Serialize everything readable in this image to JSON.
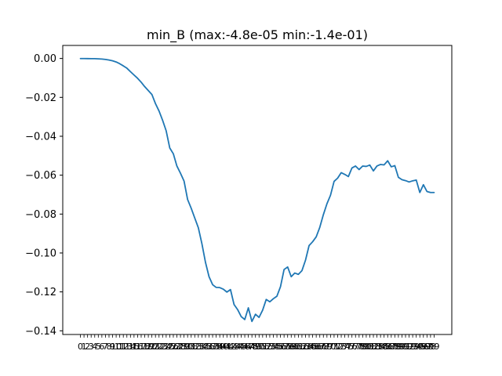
{
  "chart_data": {
    "type": "line",
    "title": "min_B (max:-4.8e-05 min:-1.4e-01)",
    "xlabel": "",
    "ylabel": "",
    "x": [
      0,
      1,
      2,
      3,
      4,
      5,
      6,
      7,
      8,
      9,
      10,
      11,
      12,
      13,
      14,
      15,
      16,
      17,
      18,
      19,
      20,
      21,
      22,
      23,
      24,
      25,
      26,
      27,
      28,
      29,
      30,
      31,
      32,
      33,
      34,
      35,
      36,
      37,
      38,
      39,
      40,
      41,
      42,
      43,
      44,
      45,
      46,
      47,
      48,
      49,
      50,
      51,
      52,
      53,
      54,
      55,
      56,
      57,
      58,
      59,
      60,
      61,
      62,
      63,
      64,
      65,
      66,
      67,
      68,
      69,
      70,
      71,
      72,
      73,
      74,
      75,
      76,
      77,
      78,
      79,
      80,
      81,
      82,
      83,
      84,
      85,
      86,
      87,
      88,
      89,
      90,
      91,
      92,
      93,
      94,
      95,
      96,
      97,
      98,
      99
    ],
    "xticks": [
      "0",
      "1",
      "2",
      "3",
      "4",
      "5",
      "6",
      "7",
      "8",
      "9",
      "10",
      "11",
      "12",
      "13",
      "14",
      "15",
      "16",
      "17",
      "18",
      "19",
      "20",
      "21",
      "22",
      "23",
      "24",
      "25",
      "26",
      "27",
      "28",
      "29",
      "30",
      "31",
      "32",
      "33",
      "34",
      "35",
      "36",
      "37",
      "38",
      "39",
      "40",
      "41",
      "42",
      "43",
      "44",
      "45",
      "46",
      "47",
      "48",
      "49",
      "50",
      "51",
      "52",
      "53",
      "54",
      "55",
      "56",
      "57",
      "58",
      "59",
      "60",
      "61",
      "62",
      "63",
      "64",
      "65",
      "66",
      "67",
      "68",
      "69",
      "70",
      "71",
      "72",
      "73",
      "74",
      "75",
      "76",
      "77",
      "78",
      "79",
      "80",
      "81",
      "82",
      "83",
      "84",
      "85",
      "86",
      "87",
      "88",
      "89",
      "90",
      "91",
      "92",
      "93",
      "94",
      "95",
      "96",
      "97",
      "98",
      "99"
    ],
    "series": [
      {
        "color": "#1f77b4",
        "values": [
          -5e-05,
          -5e-05,
          -6e-05,
          -8e-05,
          -0.0001,
          -0.0002,
          -0.0003,
          -0.0005,
          -0.0008,
          -0.0012,
          -0.0018,
          -0.0027,
          -0.0038,
          -0.005,
          -0.0068,
          -0.0085,
          -0.0102,
          -0.0122,
          -0.0145,
          -0.0165,
          -0.0185,
          -0.0232,
          -0.027,
          -0.0318,
          -0.0372,
          -0.046,
          -0.049,
          -0.0553,
          -0.059,
          -0.063,
          -0.0725,
          -0.077,
          -0.082,
          -0.087,
          -0.0952,
          -0.1048,
          -0.1122,
          -0.1163,
          -0.1177,
          -0.1178,
          -0.1186,
          -0.1201,
          -0.1188,
          -0.1265,
          -0.1291,
          -0.1327,
          -0.1342,
          -0.1282,
          -0.1352,
          -0.1315,
          -0.1331,
          -0.1294,
          -0.1239,
          -0.1251,
          -0.1235,
          -0.1222,
          -0.1173,
          -0.1085,
          -0.1072,
          -0.1122,
          -0.1103,
          -0.111,
          -0.1091,
          -0.1037,
          -0.0962,
          -0.0942,
          -0.0917,
          -0.0868,
          -0.0803,
          -0.0747,
          -0.0703,
          -0.0632,
          -0.0615,
          -0.0587,
          -0.0596,
          -0.0607,
          -0.0563,
          -0.0553,
          -0.0571,
          -0.0553,
          -0.0555,
          -0.0548,
          -0.0578,
          -0.0553,
          -0.0545,
          -0.0547,
          -0.0526,
          -0.0557,
          -0.0551,
          -0.0611,
          -0.0623,
          -0.0628,
          -0.0635,
          -0.0629,
          -0.0625,
          -0.0689,
          -0.0649,
          -0.0684,
          -0.0689,
          -0.0689
        ]
      }
    ],
    "xlim": [
      -4.95,
      103.95
    ],
    "ylim": [
      -0.1419,
      0.0067
    ],
    "yticks": [
      0.0,
      -0.02,
      -0.04,
      -0.06,
      -0.08,
      -0.1,
      -0.12,
      -0.14
    ],
    "ytick_labels": [
      "0.00",
      "−0.02",
      "−0.04",
      "−0.06",
      "−0.08",
      "−0.10",
      "−0.12",
      "−0.14"
    ],
    "grid": false,
    "legend": "none"
  }
}
